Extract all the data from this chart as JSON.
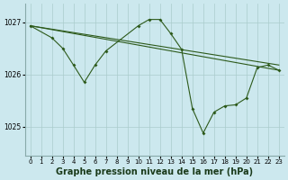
{
  "background_color": "#cce8ee",
  "grid_color": "#aacccc",
  "line_color": "#2d5a1b",
  "title": "Graphe pression niveau de la mer (hPa)",
  "ylim": [
    1024.45,
    1027.35
  ],
  "yticks": [
    1025,
    1026,
    1027
  ],
  "xlim": [
    -0.5,
    23.5
  ],
  "xticks": [
    0,
    1,
    2,
    3,
    4,
    5,
    6,
    7,
    8,
    9,
    10,
    11,
    12,
    13,
    14,
    15,
    16,
    17,
    18,
    19,
    20,
    21,
    22,
    23
  ],
  "line1": {
    "x": [
      0,
      23
    ],
    "y": [
      1026.93,
      1026.08
    ]
  },
  "line2": {
    "x": [
      0,
      23
    ],
    "y": [
      1026.93,
      1026.18
    ]
  },
  "line3": {
    "x": [
      0,
      2,
      3,
      4,
      5,
      6,
      7,
      10,
      11,
      12,
      13,
      14,
      15,
      16,
      17,
      18,
      19,
      20,
      21,
      22,
      23
    ],
    "y": [
      1026.93,
      1026.7,
      1026.5,
      1026.18,
      1025.85,
      1026.18,
      1026.45,
      1026.93,
      1027.05,
      1027.05,
      1026.78,
      1026.48,
      1025.35,
      1024.88,
      1025.28,
      1025.4,
      1025.42,
      1025.55,
      1026.13,
      1026.18,
      1026.08
    ]
  }
}
